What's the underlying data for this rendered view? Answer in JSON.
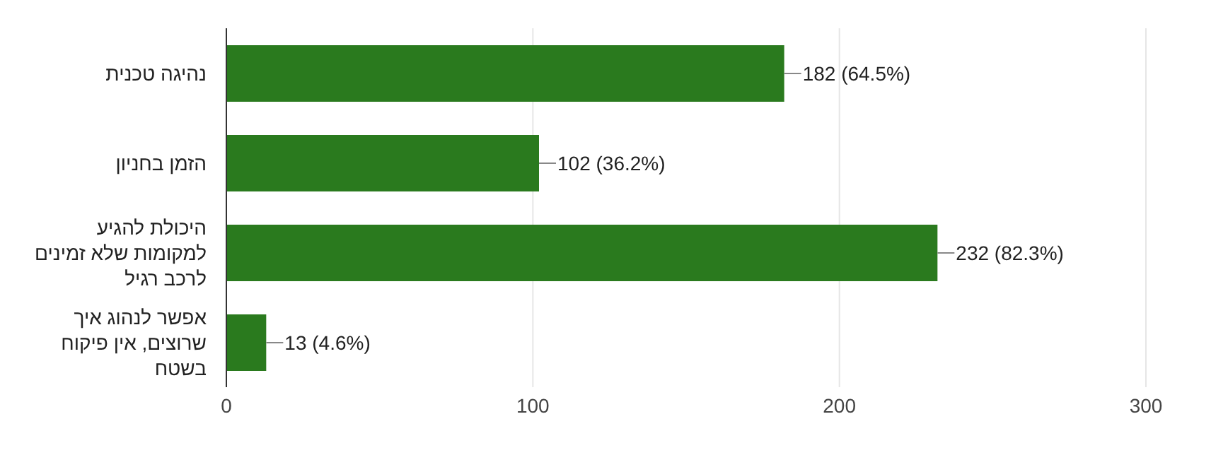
{
  "chart_data": {
    "type": "bar",
    "orientation": "horizontal",
    "categories": [
      "נהיגה טכנית",
      "הזמן בחניון",
      "היכולת להגיע למקומות שלא זמינים לרכב רגיל",
      "אפשר לנהוג איך שרוצים, אין פיקוח בשטח"
    ],
    "values": [
      182,
      102,
      232,
      13
    ],
    "value_labels": [
      "182 (64.5%)",
      "102 (36.2%)",
      "232 (82.3%)",
      "13 (4.6%)"
    ],
    "color": "#2a7a1e",
    "xlim": [
      0,
      300
    ],
    "xticks": [
      0,
      100,
      200,
      300
    ],
    "grid": "x"
  }
}
